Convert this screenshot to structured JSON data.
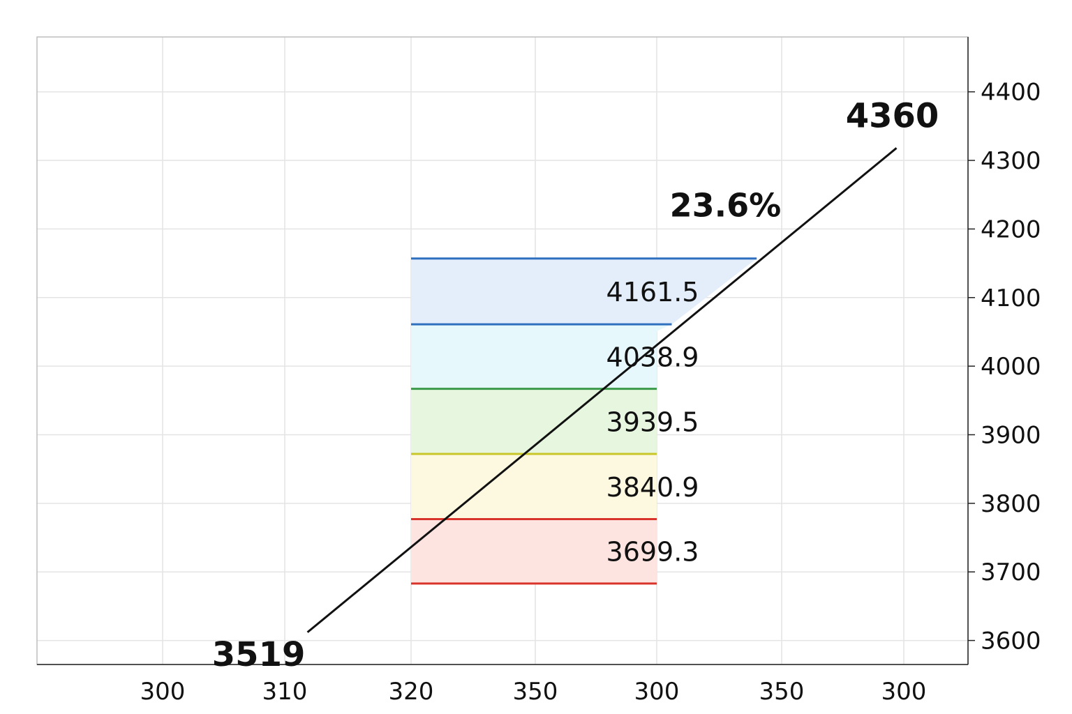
{
  "chart_data": {
    "type": "line",
    "x_tick_labels": [
      "300",
      "310",
      "320",
      "350",
      "300",
      "350",
      "300"
    ],
    "y_ticks": [
      3600,
      3700,
      3800,
      3900,
      4000,
      4100,
      4200,
      4300,
      4400
    ],
    "ylim": [
      3565,
      4480
    ],
    "grid": true,
    "trend": {
      "start_label": "3519",
      "end_label": "4360",
      "start": {
        "x_index": 1.18,
        "y": 3612
      },
      "end": {
        "x_index": 5.94,
        "y": 4318
      }
    },
    "percent_label": "23.6%",
    "levels": [
      {
        "label": "4161.5",
        "top": 4157,
        "bottom": 4061,
        "line_color": "#2f6fbf",
        "fill": "#e3eefa"
      },
      {
        "label": "4038.9",
        "top": 4061,
        "bottom": 3967,
        "line_color": "#2f6fbf",
        "fill": "#e6f8fc"
      },
      {
        "label": "3939.5",
        "top": 3967,
        "bottom": 3872,
        "line_color": "#3a9a4a",
        "fill": "#e6f6df"
      },
      {
        "label": "3840.9",
        "top": 3872,
        "bottom": 3777,
        "line_color": "#c9c62a",
        "fill": "#fdf8e0"
      },
      {
        "label": "3699.3",
        "top": 3777,
        "bottom": 3683,
        "line_color": "#d9342b",
        "fill": "#fde4e0"
      }
    ],
    "level_box_x_index": [
      2,
      4
    ],
    "top_line_right_x_index": 4.8
  }
}
